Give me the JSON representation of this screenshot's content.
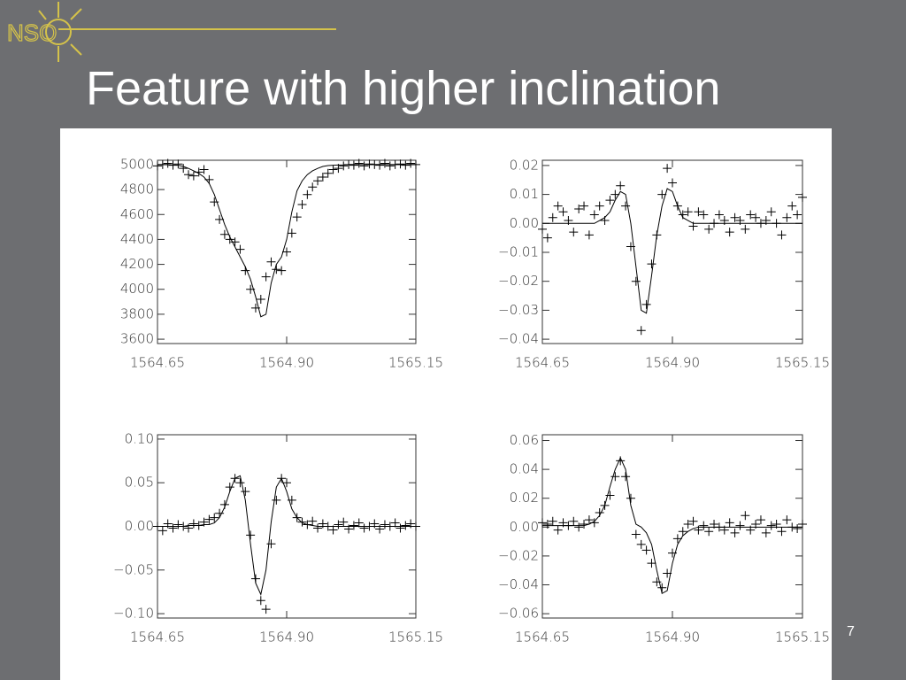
{
  "slide": {
    "title": "Feature with higher inclination",
    "logo_text": "NSO",
    "page_number": 7
  },
  "chart_data": [
    {
      "type": "line",
      "x": [
        1564.65,
        1564.66,
        1564.67,
        1564.68,
        1564.69,
        1564.7,
        1564.71,
        1564.72,
        1564.73,
        1564.74,
        1564.75,
        1564.76,
        1564.77,
        1564.78,
        1564.79,
        1564.8,
        1564.81,
        1564.82,
        1564.83,
        1564.84,
        1564.85,
        1564.86,
        1564.87,
        1564.88,
        1564.89,
        1564.9,
        1564.91,
        1564.92,
        1564.93,
        1564.94,
        1564.95,
        1564.96,
        1564.97,
        1564.98,
        1564.99,
        1565.0,
        1565.01,
        1565.02,
        1565.03,
        1565.04,
        1565.05,
        1565.06,
        1565.07,
        1565.08,
        1565.09,
        1565.1,
        1565.11,
        1565.12,
        1565.13,
        1565.14,
        1565.15
      ],
      "xlim": [
        1564.65,
        1565.15
      ],
      "xticks": [
        1564.65,
        {
          "value": 1564.9,
          "label": "1564.90"
        },
        1565.15
      ],
      "ylim": [
        3565,
        5035
      ],
      "yticks": [
        3600,
        3800,
        4000,
        4200,
        4400,
        4600,
        4800,
        5000
      ],
      "series": [
        {
          "color": "#000000",
          "style": "line",
          "values": [
            5000,
            5000,
            5000,
            4998,
            4995,
            4985,
            4970,
            4950,
            4930,
            4900,
            4850,
            4760,
            4640,
            4520,
            4420,
            4340,
            4260,
            4180,
            4080,
            3940,
            3780,
            3800,
            4050,
            4200,
            4260,
            4400,
            4620,
            4790,
            4870,
            4920,
            4950,
            4970,
            4985,
            4992,
            4995,
            4997,
            4998,
            5000,
            5000,
            5000,
            5000,
            5000,
            5000,
            5000,
            5000,
            5000,
            5000,
            5000,
            5000,
            5000,
            5000
          ]
        },
        {
          "color": "#000000",
          "style": "plus",
          "values": [
            4990,
            5000,
            5010,
            4995,
            5005,
            4970,
            4920,
            4910,
            4940,
            4960,
            4880,
            4700,
            4560,
            4440,
            4400,
            4380,
            4320,
            4150,
            4000,
            3850,
            3920,
            4100,
            4220,
            4160,
            4150,
            4300,
            4450,
            4580,
            4680,
            4760,
            4820,
            4870,
            4900,
            4930,
            4960,
            4970,
            4990,
            5000,
            4995,
            5010,
            4990,
            5005,
            5000,
            4995,
            5010,
            4990,
            5000,
            5005,
            4995,
            5010,
            5000
          ]
        }
      ]
    },
    {
      "type": "line",
      "x": [
        1564.65,
        1564.66,
        1564.67,
        1564.68,
        1564.69,
        1564.7,
        1564.71,
        1564.72,
        1564.73,
        1564.74,
        1564.75,
        1564.76,
        1564.77,
        1564.78,
        1564.79,
        1564.8,
        1564.81,
        1564.82,
        1564.83,
        1564.84,
        1564.85,
        1564.86,
        1564.87,
        1564.88,
        1564.89,
        1564.9,
        1564.91,
        1564.92,
        1564.93,
        1564.94,
        1564.95,
        1564.96,
        1564.97,
        1564.98,
        1564.99,
        1565.0,
        1565.01,
        1565.02,
        1565.03,
        1565.04,
        1565.05,
        1565.06,
        1565.07,
        1565.08,
        1565.09,
        1565.1,
        1565.11,
        1565.12,
        1565.13,
        1565.14,
        1565.15
      ],
      "xlim": [
        1564.65,
        1565.15
      ],
      "xticks": [
        1564.65,
        {
          "value": 1564.9,
          "label": "1564.90"
        },
        1565.15
      ],
      "ylim": [
        -0.0415,
        0.0218
      ],
      "yticks": [
        0.02,
        0.01,
        {
          "value": 0,
          "label": "0.00"
        },
        {
          "value": -0.01,
          "label": "−0.01"
        },
        {
          "value": -0.02,
          "label": "−0.02"
        },
        {
          "value": -0.03,
          "label": "−0.03"
        },
        {
          "value": -0.04,
          "label": "−0.04"
        }
      ],
      "series": [
        {
          "color": "#000000",
          "style": "line",
          "values": [
            0,
            0,
            0,
            0,
            0,
            0,
            0,
            0,
            0,
            0,
            0,
            0.001,
            0.002,
            0.004,
            0.008,
            0.011,
            0.01,
            0,
            -0.015,
            -0.03,
            -0.031,
            -0.018,
            -0.004,
            0.006,
            0.012,
            0.011,
            0.006,
            0.002,
            0.001,
            0,
            0,
            0,
            0,
            0,
            0,
            0,
            0,
            0,
            0,
            0,
            0,
            0,
            0,
            0,
            0,
            0,
            0,
            0,
            0,
            0,
            0
          ]
        },
        {
          "color": "#000000",
          "style": "plus",
          "values": [
            -0.002,
            -0.005,
            0.002,
            0.006,
            0.004,
            0.001,
            -0.003,
            0.005,
            0.006,
            -0.004,
            0.003,
            0.006,
            0.001,
            0.008,
            0.01,
            0.013,
            0.006,
            -0.008,
            -0.02,
            -0.037,
            -0.028,
            -0.014,
            -0.004,
            0.01,
            0.019,
            0.014,
            0.006,
            0.003,
            0.004,
            -0.001,
            0.004,
            0.003,
            -0.002,
            0,
            0.003,
            0.001,
            -0.003,
            0.002,
            0.001,
            -0.002,
            0.003,
            0.002,
            0,
            0.001,
            0.004,
            0,
            -0.004,
            0.002,
            0.006,
            0.003,
            0.009
          ]
        }
      ]
    },
    {
      "type": "line",
      "x": [
        1564.65,
        1564.66,
        1564.67,
        1564.68,
        1564.69,
        1564.7,
        1564.71,
        1564.72,
        1564.73,
        1564.74,
        1564.75,
        1564.76,
        1564.77,
        1564.78,
        1564.79,
        1564.8,
        1564.81,
        1564.82,
        1564.83,
        1564.84,
        1564.85,
        1564.86,
        1564.87,
        1564.88,
        1564.89,
        1564.9,
        1564.91,
        1564.92,
        1564.93,
        1564.94,
        1564.95,
        1564.96,
        1564.97,
        1564.98,
        1564.99,
        1565.0,
        1565.01,
        1565.02,
        1565.03,
        1565.04,
        1565.05,
        1565.06,
        1565.07,
        1565.08,
        1565.09,
        1565.1,
        1565.11,
        1565.12,
        1565.13,
        1565.14,
        1565.15
      ],
      "xlim": [
        1564.65,
        1565.15
      ],
      "xticks": [
        1564.65,
        {
          "value": 1564.9,
          "label": "1564.90"
        },
        1565.15
      ],
      "ylim": [
        -0.105,
        0.105
      ],
      "yticks": [
        {
          "value": 0.1,
          "label": "0.10"
        },
        0.05,
        {
          "value": 0,
          "label": "0.00"
        },
        {
          "value": -0.05,
          "label": "−0.05"
        },
        {
          "value": -0.1,
          "label": "−0.10"
        }
      ],
      "series": [
        {
          "color": "#000000",
          "style": "line",
          "values": [
            0,
            0,
            0,
            0,
            0,
            0,
            0.001,
            0.001,
            0.001,
            0.002,
            0.002,
            0.004,
            0.01,
            0.022,
            0.04,
            0.055,
            0.058,
            0.03,
            -0.02,
            -0.065,
            -0.078,
            -0.05,
            0.005,
            0.045,
            0.055,
            0.04,
            0.02,
            0.01,
            0.004,
            0.002,
            0.001,
            0,
            0,
            0,
            0,
            0,
            0,
            0,
            0,
            0,
            0,
            0,
            0,
            0,
            0,
            0,
            0,
            0,
            0,
            0,
            0
          ]
        },
        {
          "color": "#000000",
          "style": "plus",
          "values": [
            0,
            -0.005,
            0.003,
            -0.002,
            0.002,
            0,
            -0.002,
            0.003,
            0.001,
            0.005,
            0.008,
            0.01,
            0.015,
            0.025,
            0.045,
            0.055,
            0.05,
            0.04,
            -0.01,
            -0.06,
            -0.085,
            -0.095,
            -0.02,
            0.03,
            0.055,
            0.05,
            0.03,
            0.01,
            0.005,
            0.002,
            0.006,
            -0.002,
            0.003,
            0,
            -0.004,
            0.002,
            0.005,
            -0.003,
            0.001,
            0.004,
            -0.002,
            0,
            0.003,
            -0.003,
            0.002,
            0,
            0.004,
            -0.002,
            0.001,
            0.003,
            0
          ]
        }
      ]
    },
    {
      "type": "line",
      "x": [
        1564.65,
        1564.66,
        1564.67,
        1564.68,
        1564.69,
        1564.7,
        1564.71,
        1564.72,
        1564.73,
        1564.74,
        1564.75,
        1564.76,
        1564.77,
        1564.78,
        1564.79,
        1564.8,
        1564.81,
        1564.82,
        1564.83,
        1564.84,
        1564.85,
        1564.86,
        1564.87,
        1564.88,
        1564.89,
        1564.9,
        1564.91,
        1564.92,
        1564.93,
        1564.94,
        1564.95,
        1564.96,
        1564.97,
        1564.98,
        1564.99,
        1565.0,
        1565.01,
        1565.02,
        1565.03,
        1565.04,
        1565.05,
        1565.06,
        1565.07,
        1565.08,
        1565.09,
        1565.1,
        1565.11,
        1565.12,
        1565.13,
        1565.14,
        1565.15
      ],
      "xlim": [
        1564.65,
        1565.15
      ],
      "xticks": [
        1564.65,
        {
          "value": 1564.9,
          "label": "1564.90"
        },
        1565.15
      ],
      "ylim": [
        -0.063,
        0.064
      ],
      "yticks": [
        0.06,
        0.04,
        0.02,
        {
          "value": 0,
          "label": "0.00"
        },
        {
          "value": -0.02,
          "label": "−0.02"
        },
        {
          "value": -0.04,
          "label": "−0.04"
        },
        {
          "value": -0.06,
          "label": "−0.06"
        }
      ],
      "series": [
        {
          "color": "#000000",
          "style": "line",
          "values": [
            0.001,
            0.001,
            0.001,
            0.001,
            0.001,
            0.001,
            0.001,
            0.001,
            0.001,
            0.002,
            0.004,
            0.008,
            0.015,
            0.028,
            0.04,
            0.048,
            0.04,
            0.015,
            0.002,
            0,
            -0.004,
            -0.012,
            -0.03,
            -0.046,
            -0.044,
            -0.025,
            -0.012,
            -0.006,
            -0.003,
            -0.001,
            0,
            0,
            0,
            0,
            0,
            0,
            0,
            0,
            0,
            0,
            0,
            0,
            0,
            0,
            0,
            0,
            0,
            0,
            0,
            0,
            0
          ]
        },
        {
          "color": "#000000",
          "style": "plus",
          "values": [
            0.003,
            0.002,
            0.004,
            -0.002,
            0.003,
            0.001,
            0.004,
            0,
            0.002,
            0.005,
            0.003,
            0.01,
            0.015,
            0.022,
            0.035,
            0.046,
            0.035,
            0.02,
            -0.005,
            -0.012,
            -0.016,
            -0.025,
            -0.038,
            -0.042,
            -0.032,
            -0.018,
            -0.008,
            -0.003,
            0.002,
            0.004,
            -0.002,
            0.001,
            -0.003,
            0.002,
            0,
            -0.002,
            0.003,
            -0.004,
            0.001,
            0.008,
            -0.002,
            0.002,
            0.005,
            -0.004,
            0.001,
            0.002,
            -0.003,
            0.005,
            0,
            -0.001,
            0.002
          ]
        }
      ]
    }
  ]
}
